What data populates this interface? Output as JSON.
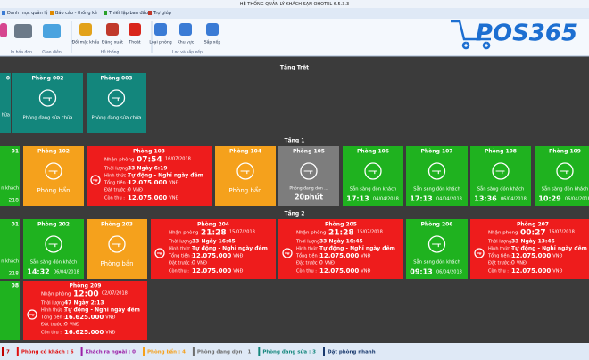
{
  "window_title": "HỆ THỐNG QUẢN LÝ KHÁCH SẠN OHOTEL 6.5.3.3",
  "menu": [
    "Danh mục quản lý",
    "Báo cáo - thống kê",
    "Thiết lập ban đầu",
    "Trợ giúp"
  ],
  "toolbar": {
    "groups": [
      "In hóa đơn",
      "Giao diện",
      "Hệ thống",
      "Lọc và sắp xếp"
    ],
    "buttons": [
      "Đổi mật khẩu",
      "Đăng xuất",
      "Thoát",
      "Loại phòng",
      "Khu vực",
      "Sắp xếp"
    ]
  },
  "logo": "POS365",
  "labels": {
    "checkin": "Nhận phòng",
    "duration": "Thời lượng :",
    "mode": "Hình thức :",
    "total": "Tổng tiền :",
    "deposit": "Đặt trước :",
    "due": "Còn thu :",
    "currency": "VNĐ"
  },
  "floors": [
    {
      "name": "Tầng Trệt",
      "rooms": [
        {
          "color": "#13867c",
          "fragments": [
            "0",
            "hữa"
          ]
        },
        {
          "name": "Phòng 002",
          "status": "Phòng đang sửa chữa",
          "color": "#13867c"
        },
        {
          "name": "Phòng 003",
          "status": "Phòng đang sửa chữa",
          "color": "#13867c"
        }
      ]
    },
    {
      "name": "Tầng 1",
      "rooms": [
        {
          "color": "#1fb21f",
          "fragments": [
            "01",
            "n khách",
            "218"
          ]
        },
        {
          "name": "Phòng 102",
          "status": "Phòng bẩn",
          "color": "#f5a11c"
        },
        {
          "name": "Phòng 103",
          "color": "#ee1c1c",
          "checkin_time": "07:54",
          "checkin_date": "16/07/2018",
          "duration": "33 Ngày 6:19",
          "mode": "Tự động - Nghỉ ngày đêm",
          "total": "12.075.000",
          "deposit": "0",
          "due": "12.075.000"
        },
        {
          "name": "Phòng 104",
          "status": "Phòng bẩn",
          "color": "#f5a11c"
        },
        {
          "name": "Phòng 105",
          "status": "Phòng đang dọn ...",
          "timer": "20phút",
          "color": "#7d7d7d"
        },
        {
          "name": "Phòng 106",
          "status": "Sẵn sàng đón khách",
          "time": "17:13",
          "date": "04/04/2018",
          "color": "#1fb21f"
        },
        {
          "name": "Phòng 107",
          "status": "Sẵn sàng đón khách",
          "time": "17:13",
          "date": "04/04/2018",
          "color": "#1fb21f"
        },
        {
          "name": "Phòng 108",
          "status": "Sẵn sàng đón khách",
          "time": "13:36",
          "date": "06/04/2018",
          "color": "#1fb21f"
        },
        {
          "name": "Phòng 109",
          "status": "Sẵn sàng đón khách",
          "time": "10:29",
          "date": "06/04/2018",
          "color": "#1fb21f"
        }
      ]
    },
    {
      "name": "Tầng 2",
      "rooms": [
        {
          "color": "#1fb21f",
          "fragments": [
            "01",
            "n khách",
            "218"
          ]
        },
        {
          "name": "Phòng 202",
          "status": "Sẵn sàng đón khách",
          "time": "14:32",
          "date": "06/04/2018",
          "color": "#1fb21f"
        },
        {
          "name": "Phòng 203",
          "status": "Phòng bẩn",
          "color": "#f5a11c"
        },
        {
          "name": "Phòng 204",
          "color": "#ee1c1c",
          "checkin_time": "21:28",
          "checkin_date": "15/07/2018",
          "duration": "33 Ngày 16:45",
          "mode": "Tự động - Nghỉ ngày đêm",
          "total": "12.075.000",
          "deposit": "0",
          "due": "12.075.000"
        },
        {
          "name": "Phòng 205",
          "color": "#ee1c1c",
          "checkin_time": "21:28",
          "checkin_date": "15/07/2018",
          "duration": "33 Ngày 16:45",
          "mode": "Tự động - Nghỉ ngày đêm",
          "total": "12.075.000",
          "deposit": "0",
          "due": "12.075.000"
        },
        {
          "name": "Phòng 206",
          "status": "Sẵn sàng đón khách",
          "time": "09:13",
          "date": "06/04/2018",
          "color": "#1fb21f"
        },
        {
          "name": "Phòng 207",
          "color": "#ee1c1c",
          "checkin_time": "00:27",
          "checkin_date": "16/07/2018",
          "duration": "33 Ngày 13:46",
          "mode": "Tự động - Nghỉ ngày đêm",
          "total": "12.075.000",
          "deposit": "0",
          "due": "12.075.000"
        },
        {
          "color": "#1fb21f",
          "fragments": [
            "08"
          ]
        },
        {
          "name": "Phòng 209",
          "color": "#ee1c1c",
          "checkin_time": "12:00",
          "checkin_date": "02/07/2018",
          "duration": "47 Ngày 2:13",
          "mode": "Tự động - Nghỉ ngày đêm",
          "total": "16.625.000",
          "deposit": "0",
          "due": "16.625.000"
        }
      ]
    }
  ],
  "status_bar": [
    {
      "text": "7",
      "color": "#c00000"
    },
    {
      "text": "Phòng có khách : 6",
      "color": "#e01010"
    },
    {
      "text": "Khách ra ngoài : 0",
      "color": "#9b1fa8"
    },
    {
      "text": "Phòng bẩn : 4",
      "color": "#f5a11c"
    },
    {
      "text": "Phòng đang dọn : 1",
      "color": "#6e6e6e"
    },
    {
      "text": "Phòng đang sửa : 3",
      "color": "#13867c"
    },
    {
      "text": "Đặt phòng nhanh",
      "color": "#1a3a6e"
    }
  ]
}
